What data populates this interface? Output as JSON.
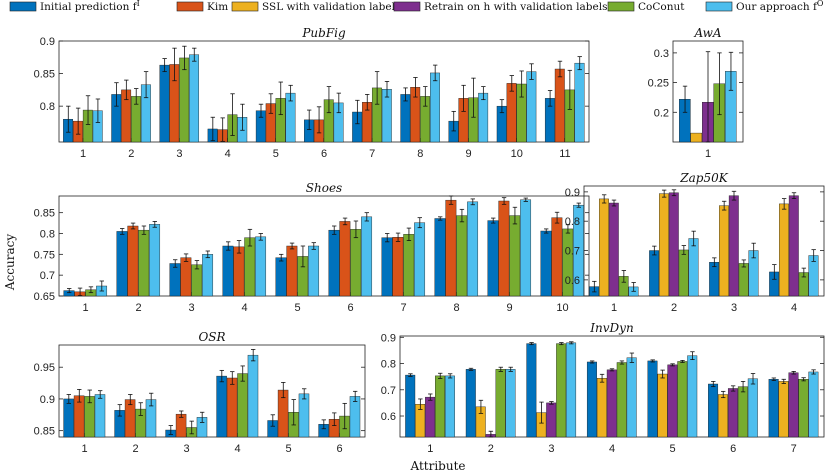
{
  "colors": {
    "Initial prediction": "#0072BD",
    "Kim et al.": "#D95319",
    "SSL with validation labels": "#EDB120",
    "Retrain with validation labels": "#7E2F8E",
    "CoConut": "#77AC30",
    "Our approach": "#4DBEEE"
  },
  "legend": [
    {
      "key": "Initial prediction",
      "label": "Initial prediction f",
      "sup": "I"
    },
    {
      "key": "Kim et al.",
      "label": "Kim et al.",
      "sup": ""
    },
    {
      "key": "SSL with validation labels",
      "label": "SSL with validation labels",
      "sup": ""
    },
    {
      "key": "Retrain with validation labels",
      "label": "Retrain on h with validation labels",
      "sup": ""
    },
    {
      "key": "CoConut",
      "label": "CoConut",
      "sup": ""
    },
    {
      "key": "Our approach",
      "label": "Our approach f",
      "sup": "O"
    }
  ],
  "ylabel": "Accuracy",
  "xlabel": "Attribute",
  "chart_data": [
    {
      "type": "bar",
      "title": "PubFig",
      "categories": [
        "1",
        "2",
        "3",
        "4",
        "5",
        "6",
        "7",
        "8",
        "9",
        "10",
        "11"
      ],
      "ylim": [
        0.745,
        0.9
      ],
      "yticks": [
        0.8,
        0.85,
        0.9
      ],
      "yticklabels": [
        "0.8",
        "0.85",
        "0.9"
      ],
      "series": [
        {
          "name": "Initial prediction",
          "values": [
            0.78,
            0.818,
            0.863,
            0.765,
            0.793,
            0.779,
            0.791,
            0.818,
            0.777,
            0.8,
            0.812
          ],
          "errors": [
            0.02,
            0.018,
            0.01,
            0.018,
            0.01,
            0.015,
            0.018,
            0.01,
            0.015,
            0.01,
            0.012
          ]
        },
        {
          "name": "Kim et al.",
          "values": [
            0.777,
            0.825,
            0.864,
            0.764,
            0.804,
            0.779,
            0.806,
            0.829,
            0.812,
            0.835,
            0.857
          ],
          "errors": [
            0.02,
            0.015,
            0.025,
            0.018,
            0.015,
            0.02,
            0.012,
            0.015,
            0.02,
            0.012,
            0.012
          ]
        },
        {
          "name": "CoConut",
          "values": [
            0.794,
            0.815,
            0.874,
            0.787,
            0.812,
            0.81,
            0.828,
            0.815,
            0.813,
            0.834,
            0.825
          ],
          "errors": [
            0.022,
            0.012,
            0.018,
            0.032,
            0.025,
            0.02,
            0.025,
            0.015,
            0.03,
            0.02,
            0.03
          ]
        },
        {
          "name": "Our approach",
          "values": [
            0.793,
            0.833,
            0.879,
            0.783,
            0.82,
            0.805,
            0.826,
            0.851,
            0.82,
            0.853,
            0.866
          ],
          "errors": [
            0.018,
            0.02,
            0.01,
            0.02,
            0.012,
            0.015,
            0.012,
            0.012,
            0.01,
            0.012,
            0.01
          ]
        }
      ]
    },
    {
      "type": "bar",
      "title": "AwA",
      "categories": [
        "1"
      ],
      "ylim": [
        0.15,
        0.32
      ],
      "yticks": [
        0.2,
        0.25,
        0.3
      ],
      "yticklabels": [
        "0.2",
        "0.25",
        "0.3"
      ],
      "series": [
        {
          "name": "Initial prediction",
          "values": [
            0.222
          ],
          "errors": [
            0.022
          ]
        },
        {
          "name": "SSL with validation labels",
          "values": [
            0.165
          ],
          "errors": [
            0.0
          ]
        },
        {
          "name": "Retrain with validation labels",
          "values": [
            0.217
          ],
          "errors": [
            0.085
          ]
        },
        {
          "name": "CoConut",
          "values": [
            0.248
          ],
          "errors": [
            0.052
          ]
        },
        {
          "name": "Our approach",
          "values": [
            0.269
          ],
          "errors": [
            0.032
          ]
        }
      ]
    },
    {
      "type": "bar",
      "title": "Shoes",
      "categories": [
        "1",
        "2",
        "3",
        "4",
        "5",
        "6",
        "7",
        "8",
        "9",
        "10"
      ],
      "ylim": [
        0.65,
        0.89
      ],
      "yticks": [
        0.65,
        0.7,
        0.75,
        0.8,
        0.85
      ],
      "yticklabels": [
        "0.65",
        "0.7",
        "0.75",
        "0.8",
        "0.85"
      ],
      "series": [
        {
          "name": "Initial prediction",
          "values": [
            0.663,
            0.805,
            0.728,
            0.77,
            0.742,
            0.808,
            0.79,
            0.836,
            0.831,
            0.806
          ],
          "errors": [
            0.005,
            0.007,
            0.009,
            0.01,
            0.008,
            0.01,
            0.01,
            0.004,
            0.006,
            0.005
          ]
        },
        {
          "name": "Kim et al.",
          "values": [
            0.66,
            0.818,
            0.742,
            0.768,
            0.77,
            0.829,
            0.791,
            0.88,
            0.878,
            0.838
          ],
          "errors": [
            0.009,
            0.007,
            0.009,
            0.015,
            0.007,
            0.008,
            0.01,
            0.01,
            0.008,
            0.013
          ]
        },
        {
          "name": "CoConut",
          "values": [
            0.665,
            0.808,
            0.725,
            0.79,
            0.745,
            0.81,
            0.798,
            0.843,
            0.843,
            0.811
          ],
          "errors": [
            0.007,
            0.01,
            0.01,
            0.02,
            0.025,
            0.02,
            0.015,
            0.015,
            0.02,
            0.01
          ]
        },
        {
          "name": "Our approach",
          "values": [
            0.674,
            0.822,
            0.75,
            0.792,
            0.77,
            0.84,
            0.826,
            0.876,
            0.881,
            0.868
          ],
          "errors": [
            0.012,
            0.007,
            0.008,
            0.008,
            0.008,
            0.01,
            0.012,
            0.007,
            0.004,
            0.005
          ]
        }
      ]
    },
    {
      "type": "bar",
      "title": "Zap50K",
      "categories": [
        "1",
        "2",
        "3",
        "4"
      ],
      "ylim": [
        0.545,
        0.92
      ],
      "yticks": [
        0.6,
        0.7,
        0.8,
        0.9
      ],
      "yticklabels": [
        "0.6",
        "0.7",
        "0.8",
        "0.9"
      ],
      "series": [
        {
          "name": "Initial prediction",
          "values": [
            0.577,
            0.7,
            0.66,
            0.627
          ],
          "errors": [
            0.018,
            0.015,
            0.015,
            0.025
          ]
        },
        {
          "name": "SSL with validation labels",
          "values": [
            0.876,
            0.894,
            0.853,
            0.859
          ],
          "errors": [
            0.014,
            0.012,
            0.015,
            0.018
          ]
        },
        {
          "name": "Retrain with validation labels",
          "values": [
            0.862,
            0.897,
            0.887,
            0.887
          ],
          "errors": [
            0.01,
            0.01,
            0.015,
            0.01
          ]
        },
        {
          "name": "CoConut",
          "values": [
            0.612,
            0.702,
            0.656,
            0.625
          ],
          "errors": [
            0.02,
            0.015,
            0.012,
            0.015
          ]
        },
        {
          "name": "Our approach",
          "values": [
            0.576,
            0.741,
            0.7,
            0.683
          ],
          "errors": [
            0.015,
            0.025,
            0.025,
            0.02
          ]
        }
      ]
    },
    {
      "type": "bar",
      "title": "OSR",
      "categories": [
        "1",
        "2",
        "3",
        "4",
        "5",
        "6"
      ],
      "ylim": [
        0.84,
        0.985
      ],
      "yticks": [
        0.85,
        0.9,
        0.95
      ],
      "yticklabels": [
        "0.85",
        "0.9",
        "0.95"
      ],
      "series": [
        {
          "name": "Initial prediction",
          "values": [
            0.9,
            0.882,
            0.851,
            0.936,
            0.866,
            0.86
          ],
          "errors": [
            0.007,
            0.009,
            0.007,
            0.009,
            0.009,
            0.007
          ]
        },
        {
          "name": "Kim et al.",
          "values": [
            0.905,
            0.899,
            0.876,
            0.933,
            0.914,
            0.868
          ],
          "errors": [
            0.01,
            0.008,
            0.005,
            0.01,
            0.012,
            0.01
          ]
        },
        {
          "name": "CoConut",
          "values": [
            0.904,
            0.884,
            0.855,
            0.94,
            0.879,
            0.873
          ],
          "errors": [
            0.01,
            0.01,
            0.01,
            0.012,
            0.02,
            0.02
          ]
        },
        {
          "name": "Our approach",
          "values": [
            0.907,
            0.899,
            0.871,
            0.969,
            0.908,
            0.904
          ],
          "errors": [
            0.006,
            0.01,
            0.008,
            0.009,
            0.008,
            0.008
          ]
        }
      ]
    },
    {
      "type": "bar",
      "title": "InvDyn",
      "categories": [
        "1",
        "2",
        "3",
        "4",
        "5",
        "6",
        "7"
      ],
      "ylim": [
        0.52,
        0.905
      ],
      "yticks": [
        0.6,
        0.7,
        0.8,
        0.9
      ],
      "yticklabels": [
        "0.6",
        "0.7",
        "0.8",
        "0.9"
      ],
      "series": [
        {
          "name": "Initial prediction",
          "values": [
            0.756,
            0.778,
            0.876,
            0.806,
            0.81,
            0.722,
            0.74
          ],
          "errors": [
            0.005,
            0.004,
            0.004,
            0.004,
            0.004,
            0.01,
            0.005
          ]
        },
        {
          "name": "SSL with validation labels",
          "values": [
            0.645,
            0.635,
            0.613,
            0.744,
            0.76,
            0.682,
            0.732
          ],
          "errors": [
            0.02,
            0.025,
            0.04,
            0.015,
            0.015,
            0.012,
            0.008
          ]
        },
        {
          "name": "Retrain with validation labels",
          "values": [
            0.672,
            0.53,
            0.65,
            0.776,
            0.795,
            0.705,
            0.765
          ],
          "errors": [
            0.012,
            0.012,
            0.005,
            0.004,
            0.004,
            0.01,
            0.005
          ]
        },
        {
          "name": "CoConut",
          "values": [
            0.753,
            0.778,
            0.876,
            0.804,
            0.808,
            0.712,
            0.74
          ],
          "errors": [
            0.01,
            0.008,
            0.004,
            0.006,
            0.004,
            0.02,
            0.006
          ]
        },
        {
          "name": "Our approach",
          "values": [
            0.753,
            0.778,
            0.879,
            0.822,
            0.83,
            0.742,
            0.768
          ],
          "errors": [
            0.008,
            0.008,
            0.004,
            0.018,
            0.015,
            0.02,
            0.008
          ]
        }
      ]
    }
  ]
}
